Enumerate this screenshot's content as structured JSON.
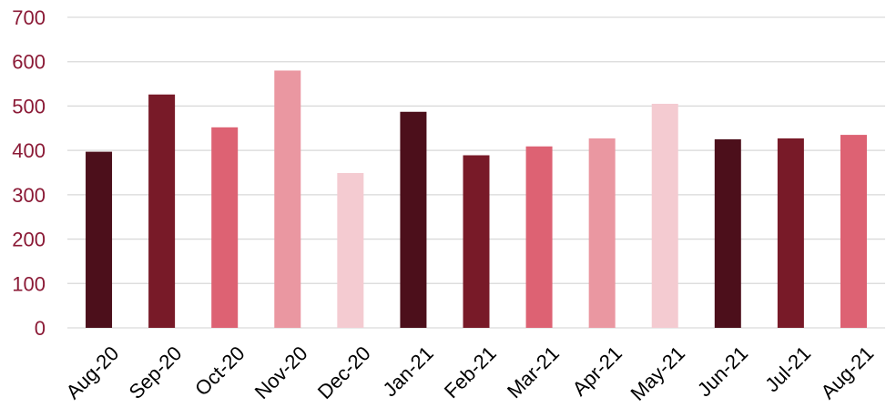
{
  "chart_data": {
    "type": "bar",
    "title": "",
    "xlabel": "",
    "ylabel": "",
    "ylim": [
      0,
      700
    ],
    "yticks": [
      0,
      100,
      200,
      300,
      400,
      500,
      600,
      700
    ],
    "grid": true,
    "legend": "none",
    "categories": [
      "Aug-20",
      "Sep-20",
      "Oct-20",
      "Nov-20",
      "Dec-20",
      "Jan-21",
      "Feb-21",
      "Mar-21",
      "Apr-21",
      "May-21",
      "Jun-21",
      "Jul-21",
      "Aug-21"
    ],
    "values": [
      397,
      526,
      452,
      580,
      349,
      487,
      389,
      409,
      427,
      505,
      425,
      427,
      435
    ],
    "bar_colors": [
      "#4c0f1b",
      "#781a28",
      "#dd6273",
      "#ea97a1",
      "#f4cbd1",
      "#4c0f1b",
      "#781a28",
      "#dd6273",
      "#ea97a1",
      "#f4cbd1",
      "#4c0f1b",
      "#781a28",
      "#dd6273"
    ],
    "ytick_color": "#8b1a36"
  }
}
